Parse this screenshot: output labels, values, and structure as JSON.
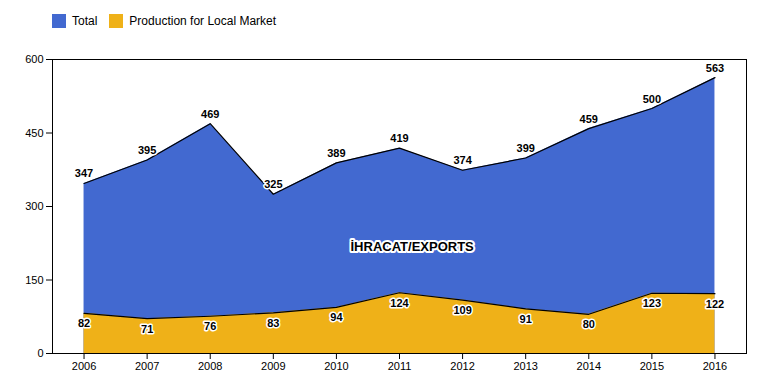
{
  "chart_data": {
    "type": "area",
    "x": [
      2006,
      2007,
      2008,
      2009,
      2010,
      2011,
      2012,
      2013,
      2014,
      2015,
      2016
    ],
    "series": [
      {
        "name": "Total",
        "values": [
          347,
          395,
          469,
          325,
          389,
          419,
          374,
          399,
          459,
          500,
          563
        ]
      },
      {
        "name": "Production for Local Market",
        "values": [
          82,
          71,
          76,
          83,
          94,
          124,
          109,
          91,
          80,
          123,
          122
        ]
      }
    ],
    "xlim": [
      2005.5,
      2016.5
    ],
    "xticks": [
      2006,
      2007,
      2008,
      2009,
      2010,
      2011,
      2012,
      2013,
      2014,
      2015,
      2016
    ],
    "ylim": [
      0,
      600
    ],
    "yticks": [
      0,
      150,
      300,
      450,
      600
    ],
    "data_labels": true,
    "legend": "upper left",
    "annotations": [
      {
        "text": "İHRACAT/EXPORTS",
        "x": 2011.2,
        "y": 218
      }
    ]
  }
}
